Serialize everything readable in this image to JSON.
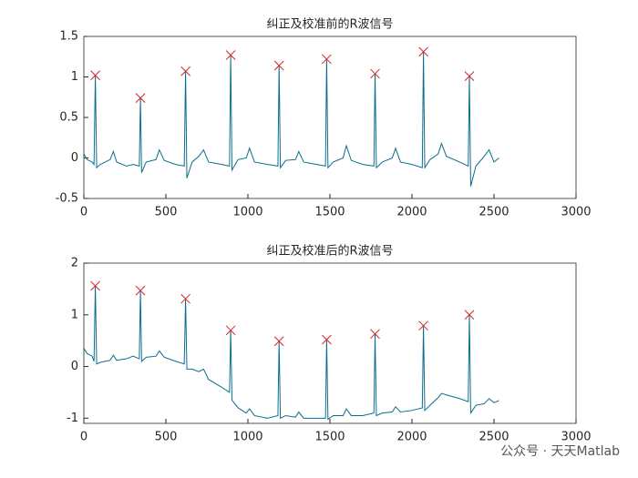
{
  "chart_data": [
    {
      "type": "line",
      "title": "纠正及校准前的R波信号",
      "xlim": [
        0,
        3000
      ],
      "xticks": [
        0,
        500,
        1000,
        1500,
        2000,
        2500,
        3000
      ],
      "ylim": [
        -0.5,
        1.5
      ],
      "yticks": [
        -0.5,
        0,
        0.5,
        1,
        1.5
      ],
      "series": [
        {
          "color": "#0b6e8c",
          "x": [
            0,
            20,
            50,
            62,
            70,
            78,
            100,
            160,
            180,
            200,
            260,
            300,
            338,
            345,
            352,
            380,
            440,
            460,
            490,
            560,
            612,
            620,
            628,
            660,
            700,
            730,
            760,
            840,
            888,
            895,
            903,
            940,
            990,
            1010,
            1040,
            1120,
            1183,
            1190,
            1198,
            1230,
            1290,
            1310,
            1340,
            1420,
            1473,
            1480,
            1488,
            1520,
            1580,
            1600,
            1630,
            1700,
            1768,
            1775,
            1783,
            1820,
            1880,
            1900,
            1930,
            2000,
            2063,
            2070,
            2078,
            2110,
            2160,
            2180,
            2210,
            2290,
            2343,
            2350,
            2358,
            2390,
            2440,
            2470,
            2500,
            2530
          ],
          "values": [
            0.05,
            -0.02,
            -0.05,
            -0.08,
            1.02,
            -0.12,
            -0.08,
            -0.02,
            0.08,
            -0.05,
            -0.1,
            -0.08,
            -0.1,
            0.74,
            -0.18,
            -0.05,
            -0.02,
            0.1,
            -0.03,
            -0.08,
            -0.1,
            1.07,
            -0.25,
            -0.05,
            0.02,
            0.1,
            -0.05,
            -0.08,
            -0.1,
            1.27,
            -0.15,
            -0.02,
            0.0,
            0.12,
            -0.05,
            -0.08,
            -0.1,
            1.14,
            -0.12,
            -0.03,
            -0.02,
            0.08,
            -0.05,
            -0.08,
            -0.1,
            1.22,
            -0.12,
            -0.05,
            0.0,
            0.15,
            -0.03,
            -0.08,
            -0.1,
            1.04,
            -0.12,
            -0.05,
            0.0,
            0.12,
            -0.05,
            -0.08,
            -0.12,
            1.31,
            -0.12,
            -0.02,
            0.05,
            0.18,
            0.02,
            -0.05,
            -0.1,
            1.01,
            -0.35,
            -0.1,
            0.02,
            0.1,
            -0.05,
            0.0
          ]
        },
        {
          "color": "#d9232b",
          "marker": "x",
          "x": [
            70,
            345,
            620,
            895,
            1190,
            1480,
            1775,
            2070,
            2350
          ],
          "values": [
            1.02,
            0.74,
            1.07,
            1.27,
            1.14,
            1.22,
            1.04,
            1.31,
            1.01
          ]
        }
      ]
    },
    {
      "type": "line",
      "title": "纠正及校准后的R波信号",
      "xlim": [
        0,
        3000
      ],
      "xticks": [
        0,
        500,
        1000,
        1500,
        2000,
        2500,
        3000
      ],
      "ylim": [
        -1.1,
        2
      ],
      "yticks": [
        -1,
        0,
        1,
        2
      ],
      "series": [
        {
          "color": "#0b6e8c",
          "x": [
            0,
            20,
            50,
            62,
            70,
            78,
            100,
            160,
            180,
            200,
            260,
            300,
            338,
            345,
            352,
            380,
            440,
            460,
            490,
            560,
            612,
            620,
            628,
            660,
            700,
            730,
            760,
            840,
            888,
            895,
            903,
            940,
            990,
            1010,
            1040,
            1120,
            1183,
            1190,
            1198,
            1230,
            1290,
            1310,
            1340,
            1420,
            1473,
            1480,
            1488,
            1520,
            1580,
            1600,
            1630,
            1700,
            1768,
            1775,
            1783,
            1820,
            1880,
            1900,
            1930,
            2000,
            2063,
            2070,
            2078,
            2110,
            2160,
            2180,
            2210,
            2290,
            2343,
            2350,
            2358,
            2390,
            2440,
            2470,
            2500,
            2530
          ],
          "values": [
            0.35,
            0.25,
            0.2,
            0.1,
            1.56,
            0.05,
            0.08,
            0.12,
            0.22,
            0.12,
            0.15,
            0.2,
            0.15,
            1.47,
            0.1,
            0.18,
            0.2,
            0.3,
            0.18,
            0.1,
            0.05,
            1.31,
            -0.05,
            -0.05,
            -0.1,
            -0.05,
            -0.25,
            -0.4,
            -0.5,
            0.7,
            -0.65,
            -0.8,
            -0.9,
            -0.82,
            -0.95,
            -1.0,
            -0.95,
            0.49,
            -1.0,
            -0.95,
            -0.98,
            -0.88,
            -1.0,
            -1.0,
            -1.0,
            0.52,
            -1.02,
            -0.95,
            -0.95,
            -0.82,
            -0.95,
            -0.95,
            -0.9,
            0.63,
            -0.95,
            -0.9,
            -0.88,
            -0.78,
            -0.88,
            -0.85,
            -0.8,
            0.79,
            -0.85,
            -0.75,
            -0.6,
            -0.52,
            -0.55,
            -0.62,
            -0.68,
            1.0,
            -0.9,
            -0.75,
            -0.72,
            -0.62,
            -0.7,
            -0.66
          ]
        },
        {
          "color": "#d9232b",
          "marker": "x",
          "x": [
            70,
            345,
            620,
            895,
            1190,
            1480,
            1775,
            2070,
            2350
          ],
          "values": [
            1.56,
            1.47,
            1.31,
            0.7,
            0.49,
            0.52,
            0.63,
            0.79,
            1.0
          ]
        }
      ]
    }
  ],
  "watermark": "公众号 · 天天Matlab"
}
